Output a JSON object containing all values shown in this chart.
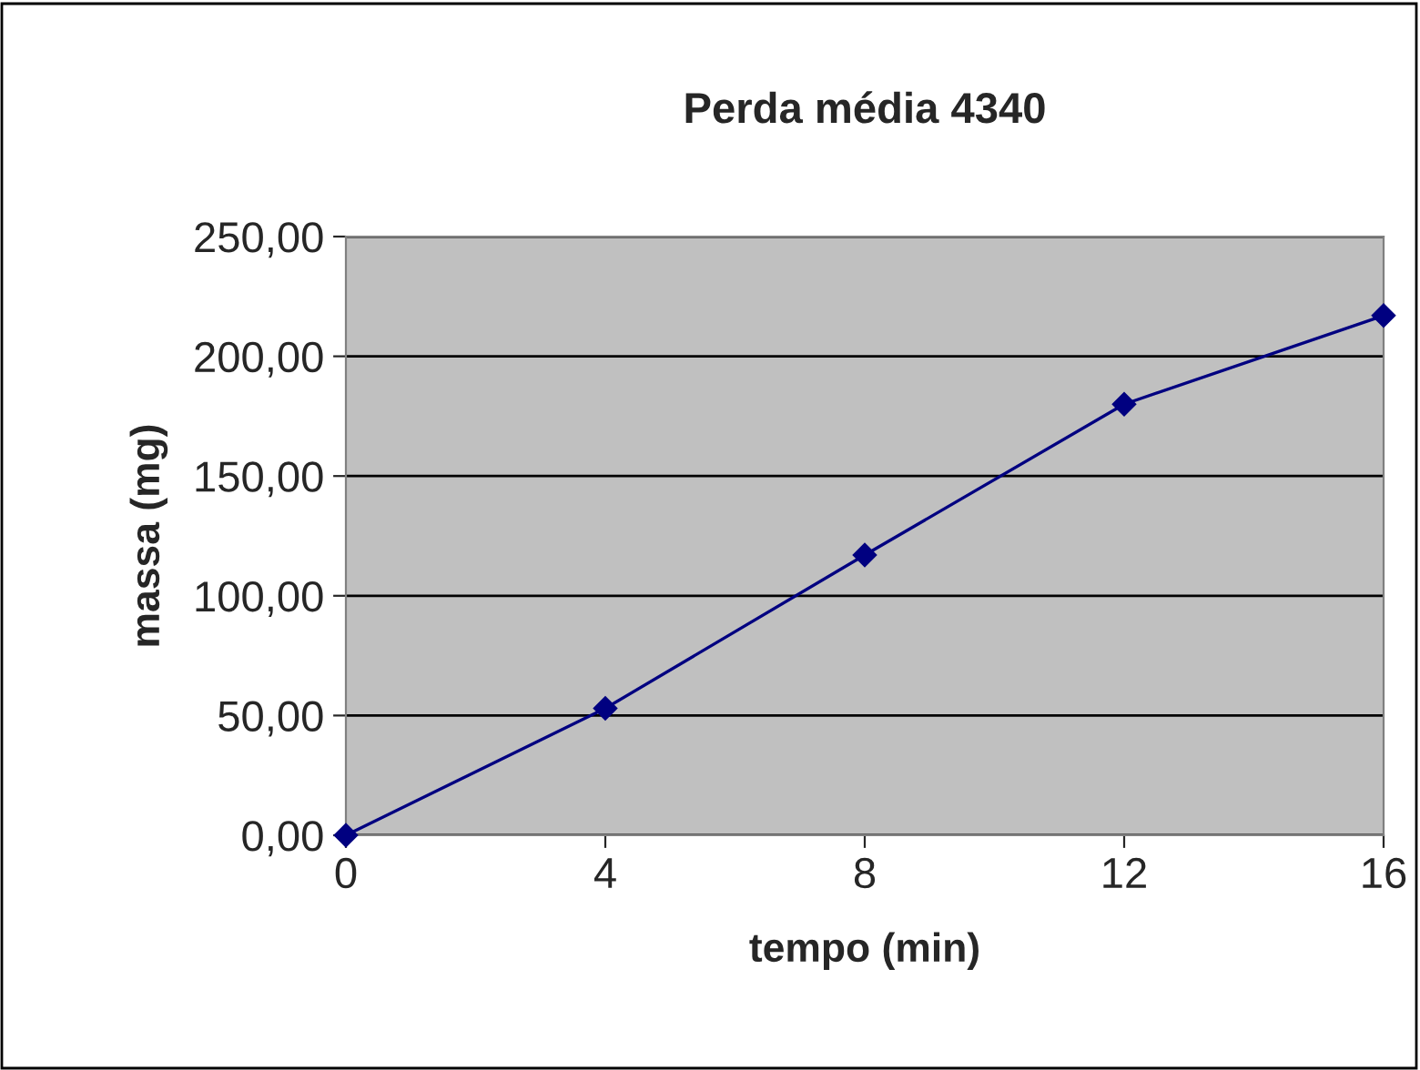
{
  "chart_data": {
    "type": "line",
    "title": "Perda média 4340",
    "xlabel": "tempo (min)",
    "ylabel": "massa (mg)",
    "x": [
      0,
      4,
      8,
      12,
      16
    ],
    "series": [
      {
        "color": "#000080",
        "values": [
          0,
          53,
          117,
          180,
          217
        ]
      }
    ],
    "xlim": [
      0,
      16
    ],
    "xticks": [
      0,
      4,
      8,
      12,
      16
    ],
    "ylim": [
      0,
      250
    ],
    "yticks": [
      {
        "value": 0,
        "label": "0,00"
      },
      {
        "value": 50,
        "label": "50,00"
      },
      {
        "value": 100,
        "label": "100,00"
      },
      {
        "value": 150,
        "label": "150,00"
      },
      {
        "value": 200,
        "label": "200,00"
      },
      {
        "value": 250,
        "label": "250,00"
      }
    ],
    "grid": "y",
    "marker": "diamond",
    "line_style": "solid",
    "legend": false
  }
}
